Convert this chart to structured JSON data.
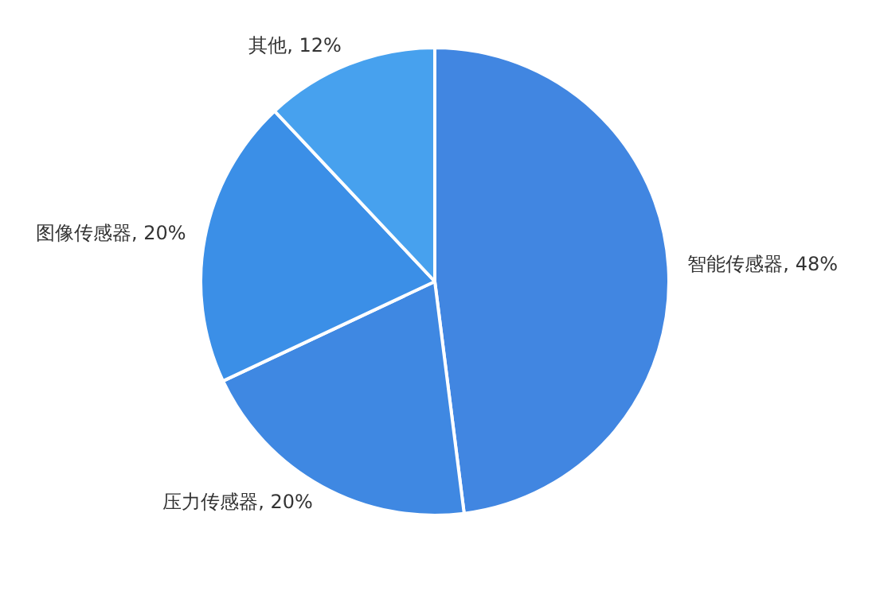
{
  "chart_data": {
    "type": "pie",
    "categories": [
      "智能传感器",
      "压力传感器",
      "图像传感器",
      "其他"
    ],
    "values": [
      48,
      20,
      20,
      12
    ],
    "value_labels": [
      "48%",
      "20%",
      "20%",
      "12%"
    ],
    "colors": [
      "#4186e1",
      "#3f88e2",
      "#3b8fe7",
      "#47a1ee"
    ],
    "legend": false
  }
}
